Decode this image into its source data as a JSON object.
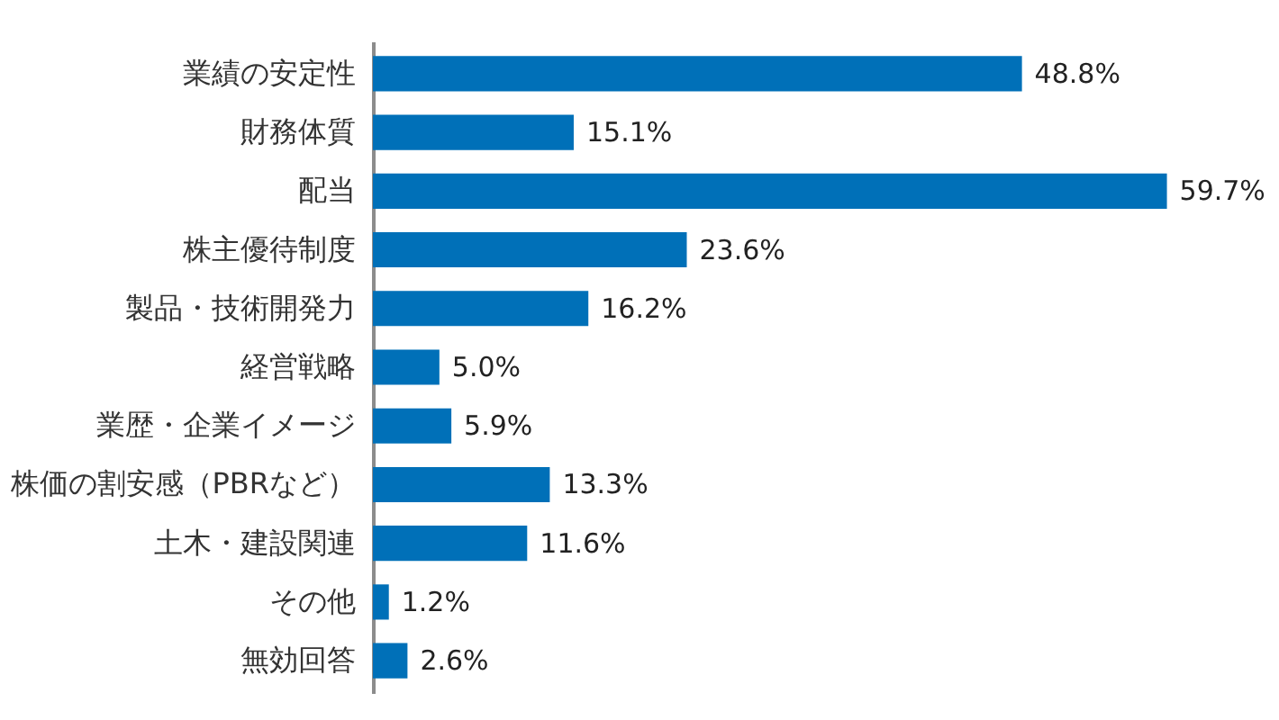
{
  "chart_data": {
    "type": "bar",
    "orientation": "horizontal",
    "categories": [
      "業績の安定性",
      "財務体質",
      "配当",
      "株主優待制度",
      "製品・技術開発力",
      "経営戦略",
      "業歴・企業イメージ",
      "株価の割安感（PBRなど）",
      "土木・建設関連",
      "その他",
      "無効回答"
    ],
    "values": [
      48.8,
      15.1,
      59.7,
      23.6,
      16.2,
      5.0,
      5.9,
      13.3,
      11.6,
      1.2,
      2.6
    ],
    "value_labels": [
      "48.8%",
      "15.1%",
      "59.7%",
      "23.6%",
      "16.2%",
      "5.0%",
      "5.9%",
      "13.3%",
      "11.6%",
      "1.2%",
      "2.6%"
    ],
    "color": "#0070b8",
    "tick_labels": "y"
  }
}
